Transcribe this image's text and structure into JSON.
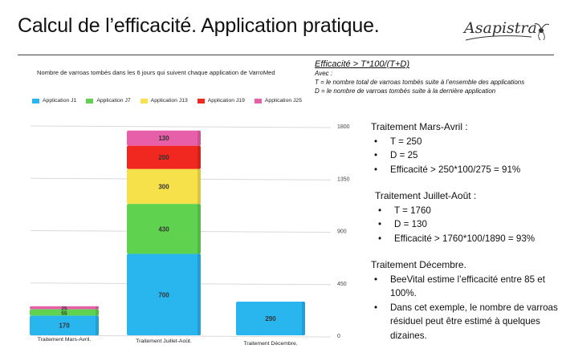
{
  "slide": {
    "title": "Calcul de l’efficacité. Application pratique.",
    "logo_text": "Asapistra"
  },
  "formula": {
    "main": "Efficacité > T*100/(T+D)",
    "avec": "Avec :",
    "t_def": "T = le nombre total de varroas tombés suite à l’ensemble des applications",
    "d_def": "D = le nombre de varroas tombés suite à la dernière application"
  },
  "sections": [
    {
      "heading": "Traitement Mars-Avril :",
      "bullets": [
        "T = 250",
        "D = 25",
        "Efficacité > 250*100/275 = 91%"
      ]
    },
    {
      "heading": "Traitement Juillet-Août :",
      "bullets": [
        "T = 1760",
        "D = 130",
        "Efficacité > 1760*100/1890 = 93%"
      ]
    },
    {
      "heading": "Traitement Décembre.",
      "bullets": [
        "BeeVital estime l’efficacité entre 85 et 100%.",
        "Dans cet exemple, le nombre de varroas résiduel peut être estimé à quelques dizaines."
      ]
    }
  ],
  "chart_data": {
    "type": "bar",
    "stacked": true,
    "title": "Nombre de varroas tombés dans les 6 jours qui suivent chaque application de VarroMed",
    "categories": [
      "Traitement Mars-Avril.",
      "Traitement Juillet-Août.",
      "Traitement Décembre."
    ],
    "series": [
      {
        "name": "Application J1",
        "color": "#29b6ef",
        "values": [
          170,
          700,
          290
        ]
      },
      {
        "name": "Application J7",
        "color": "#5fd34f",
        "values": [
          55,
          430,
          0
        ]
      },
      {
        "name": "Application J13",
        "color": "#f6e14a",
        "values": [
          0,
          300,
          0
        ]
      },
      {
        "name": "Application J19",
        "color": "#f0281f",
        "values": [
          0,
          200,
          0
        ]
      },
      {
        "name": "Application J25",
        "color": "#e65fa8",
        "values": [
          25,
          130,
          0
        ]
      }
    ],
    "ylim": [
      0,
      1800
    ],
    "yticks": [
      "0",
      "450",
      "900",
      "1350",
      "1800"
    ],
    "grid": true,
    "legend": "top",
    "xlabel": "",
    "ylabel": ""
  }
}
